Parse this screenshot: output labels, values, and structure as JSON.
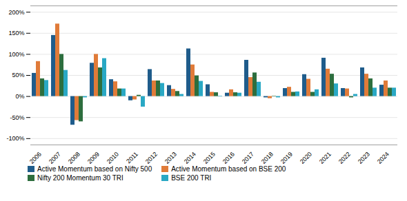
{
  "chart_data": {
    "type": "bar",
    "categories": [
      "2006",
      "2007",
      "2008",
      "2009",
      "2010",
      "2011",
      "2012",
      "2013",
      "2014",
      "2015",
      "2016",
      "2017",
      "2018",
      "2019",
      "2020",
      "2021",
      "2022",
      "2023",
      "2024"
    ],
    "series": [
      {
        "name": "Active Momentum based on Nifty 500",
        "color": "#1f5c8b",
        "values": [
          55,
          145,
          -68,
          79,
          40,
          -10,
          64,
          26,
          113,
          28,
          8,
          86,
          -3,
          19,
          52,
          91,
          19,
          68,
          27
        ]
      },
      {
        "name": "Active Momentum based on BSE 200",
        "color": "#e07b39",
        "values": [
          83,
          172,
          -57,
          100,
          35,
          -8,
          37,
          17,
          75,
          10,
          16,
          45,
          -5,
          22,
          41,
          65,
          18,
          53,
          37
        ]
      },
      {
        "name": "Nifty 200 Momentum 30 TRI",
        "color": "#2d6e3e",
        "values": [
          42,
          100,
          -60,
          68,
          18,
          3,
          37,
          12,
          49,
          9,
          9,
          56,
          1,
          10,
          10,
          53,
          -3,
          42,
          20
        ]
      },
      {
        "name": "BSE 200 TRI",
        "color": "#29a8c4",
        "values": [
          38,
          62,
          -3,
          90,
          18,
          -25,
          31,
          5,
          36,
          1,
          8,
          34,
          -3,
          11,
          16,
          30,
          5,
          20,
          20
        ]
      }
    ],
    "ylim": [
      -115,
      215
    ],
    "yticks": [
      {
        "value": -100,
        "label": "-100%"
      },
      {
        "value": -50,
        "label": "-50%"
      },
      {
        "value": 0,
        "label": "0%"
      },
      {
        "value": 50,
        "label": "50%"
      },
      {
        "value": 100,
        "label": "100%"
      },
      {
        "value": 150,
        "label": "150%"
      },
      {
        "value": 200,
        "label": "200%"
      }
    ],
    "grid": true,
    "legend": "bottom"
  }
}
